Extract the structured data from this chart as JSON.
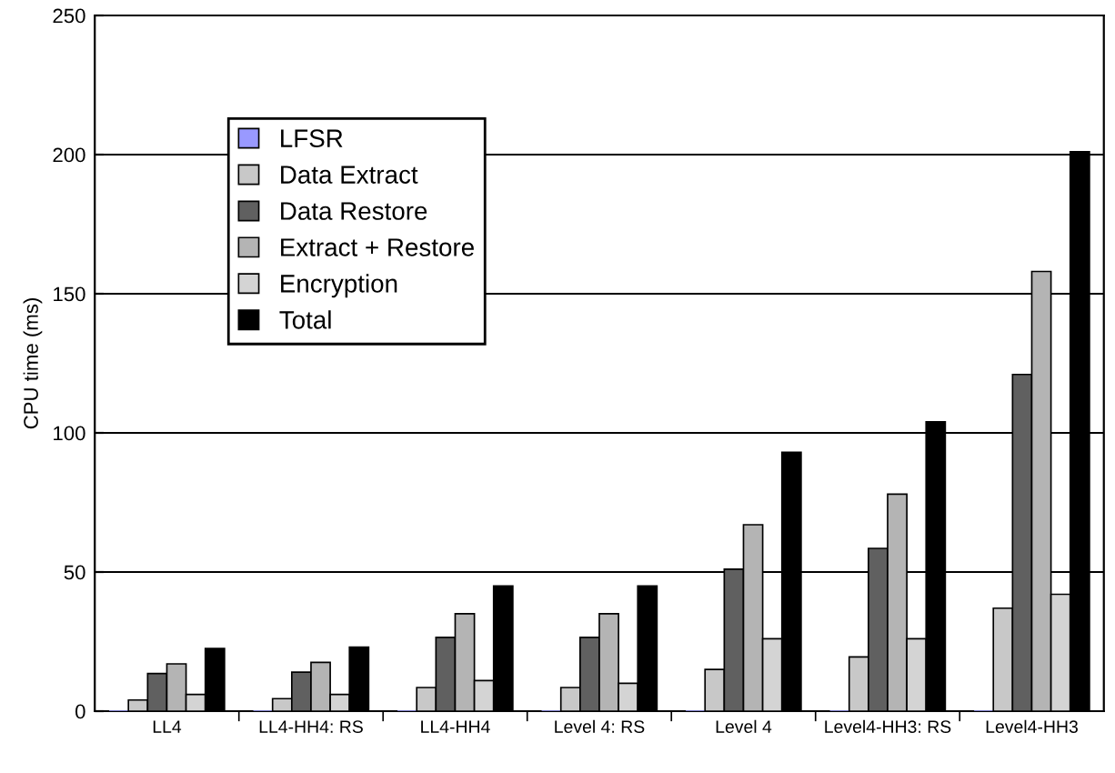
{
  "chart_data": {
    "type": "bar",
    "ylabel": "CPU time (ms)",
    "categories": [
      "LL4",
      "LL4-HH4: RS",
      "LL4-HH4",
      "Level 4: RS",
      "Level 4",
      "Level4-HH3: RS",
      "Level4-HH3"
    ],
    "series": [
      {
        "name": "LFSR",
        "color": "#9999ff",
        "values": [
          0,
          0,
          0,
          0,
          0,
          0,
          0
        ]
      },
      {
        "name": "Data Extract",
        "color": "#c8c8c8",
        "values": [
          4,
          4.5,
          8.5,
          8.5,
          15,
          19.5,
          37
        ]
      },
      {
        "name": "Data Restore",
        "color": "#606060",
        "values": [
          13.5,
          14,
          26.5,
          26.5,
          51,
          58.5,
          121
        ]
      },
      {
        "name": "Extract + Restore",
        "color": "#b4b4b4",
        "values": [
          17,
          17.5,
          35,
          35,
          67,
          78,
          158
        ]
      },
      {
        "name": "Encryption",
        "color": "#d4d4d4",
        "values": [
          6,
          6,
          11,
          10,
          26,
          26,
          42
        ]
      },
      {
        "name": "Total",
        "color": "#000000",
        "values": [
          22.5,
          23,
          45,
          45,
          93,
          104,
          201
        ]
      }
    ],
    "ylim": [
      0,
      250
    ],
    "yticks": [
      0,
      50,
      100,
      150,
      200,
      250
    ],
    "grid": "y",
    "legend": "top left"
  }
}
